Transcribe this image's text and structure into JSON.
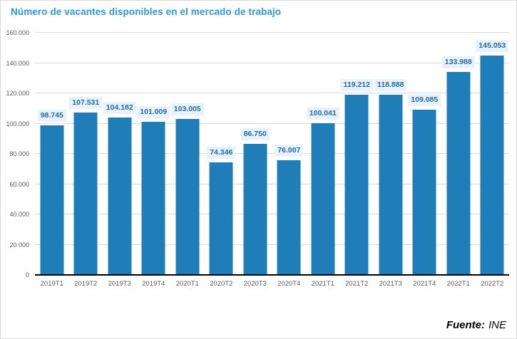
{
  "title": "Número de vacantes disponibles en el mercado de trabajo",
  "source": {
    "label": "Fuente:",
    "value": "INE"
  },
  "colors": {
    "bar": "#1f7db8",
    "title_text": "#2e96d6",
    "value_label_text": "#1b6ca8",
    "value_label_bg": "#e9f2fa",
    "gridline": "#d9d9d9",
    "axis_line": "#000000",
    "tick_text": "#595959"
  },
  "chart_data": {
    "type": "bar",
    "title": "Número de vacantes disponibles en el mercado de trabajo",
    "categories": [
      "2019T1",
      "2019T2",
      "2019T3",
      "2019T4",
      "2020T1",
      "2020T2",
      "2020T3",
      "2020T4",
      "2021T1",
      "2021T2",
      "2021T3",
      "2021T4",
      "2022T1",
      "2022T2"
    ],
    "values": [
      98745,
      107531,
      104182,
      101009,
      103005,
      74346,
      86750,
      76007,
      100041,
      119212,
      118888,
      109085,
      133988,
      145053
    ],
    "value_labels": [
      "98.745",
      "107.531",
      "104.182",
      "101.009",
      "103.005",
      "74.346",
      "86.750",
      "76.007",
      "100.041",
      "119.212",
      "118.888",
      "109.085",
      "133.988",
      "145.053"
    ],
    "xlabel": "",
    "ylabel": "",
    "ylim": [
      0,
      160000
    ],
    "ytick_step": 20000,
    "ytick_labels": [
      "0",
      "20.000",
      "40.000",
      "60.000",
      "80.000",
      "100.000",
      "120.000",
      "140.000",
      "160.000"
    ],
    "grid": true,
    "legend": "none"
  }
}
